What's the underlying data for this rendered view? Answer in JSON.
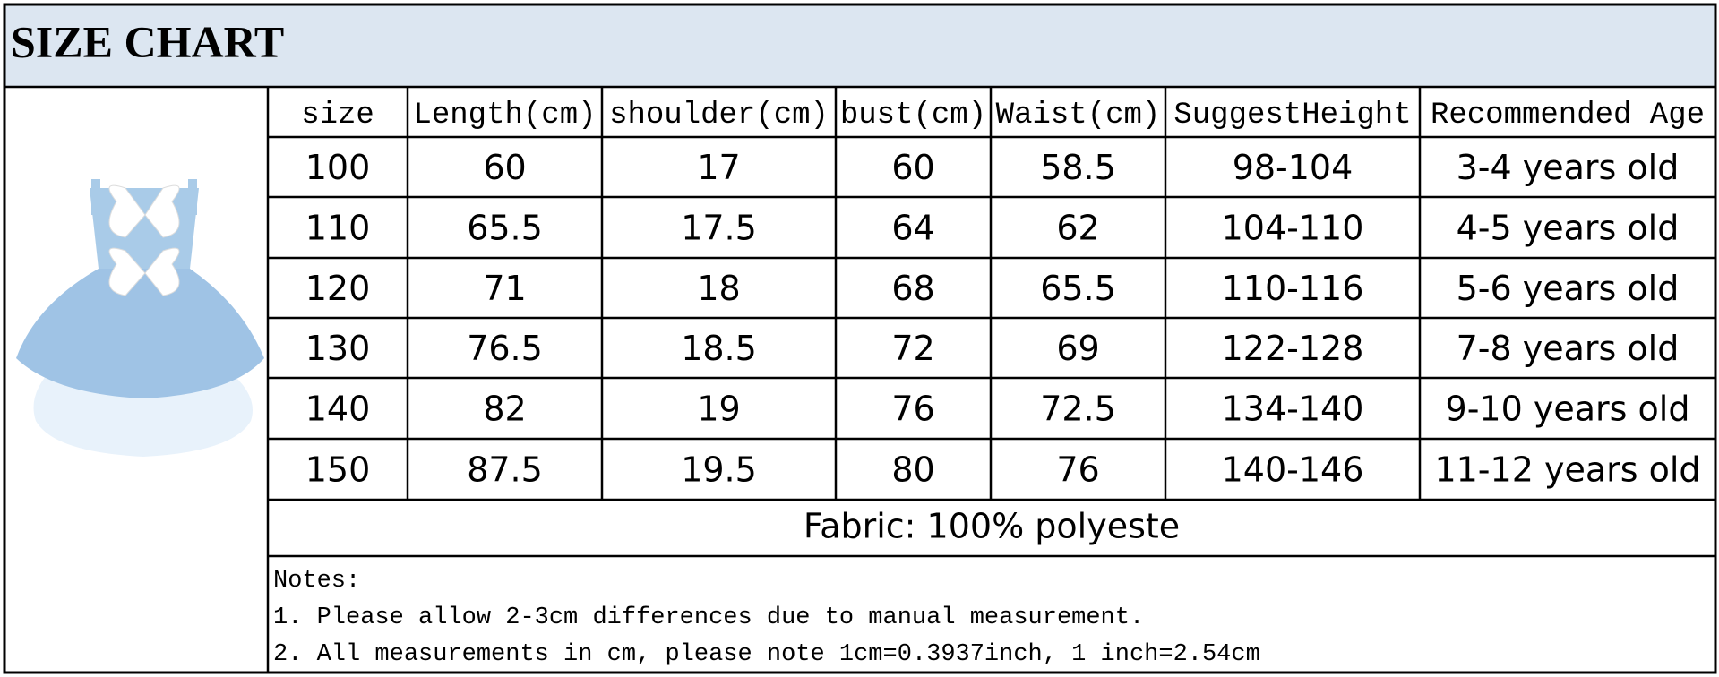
{
  "header": {
    "title": "SIZE CHART"
  },
  "table": {
    "columns": [
      "size",
      "Length(cm)",
      "shoulder(cm)",
      "bust(cm)",
      "Waist(cm)",
      "SuggestHeight",
      "Recommended Age"
    ],
    "rows": [
      [
        "100",
        "60",
        "17",
        "60",
        "58.5",
        "98-104",
        "3-4 years old"
      ],
      [
        "110",
        "65.5",
        "17.5",
        "64",
        "62",
        "104-110",
        "4-5 years old"
      ],
      [
        "120",
        "71",
        "18",
        "68",
        "65.5",
        "110-116",
        "5-6 years old"
      ],
      [
        "130",
        "76.5",
        "18.5",
        "72",
        "69",
        "122-128",
        "7-8 years old"
      ],
      [
        "140",
        "82",
        "19",
        "76",
        "72.5",
        "134-140",
        "9-10 years old"
      ],
      [
        "150",
        "87.5",
        "19.5",
        "80",
        "76",
        "140-146",
        "11-12 years old"
      ]
    ],
    "fabric": "Fabric: 100% polyeste"
  },
  "notes": {
    "heading": "Notes:",
    "lines": [
      "1. Please allow 2-3cm differences due to manual measurement.",
      "2. All measurements in cm, please note 1cm=0.3937inch, 1 inch=2.54cm"
    ]
  }
}
